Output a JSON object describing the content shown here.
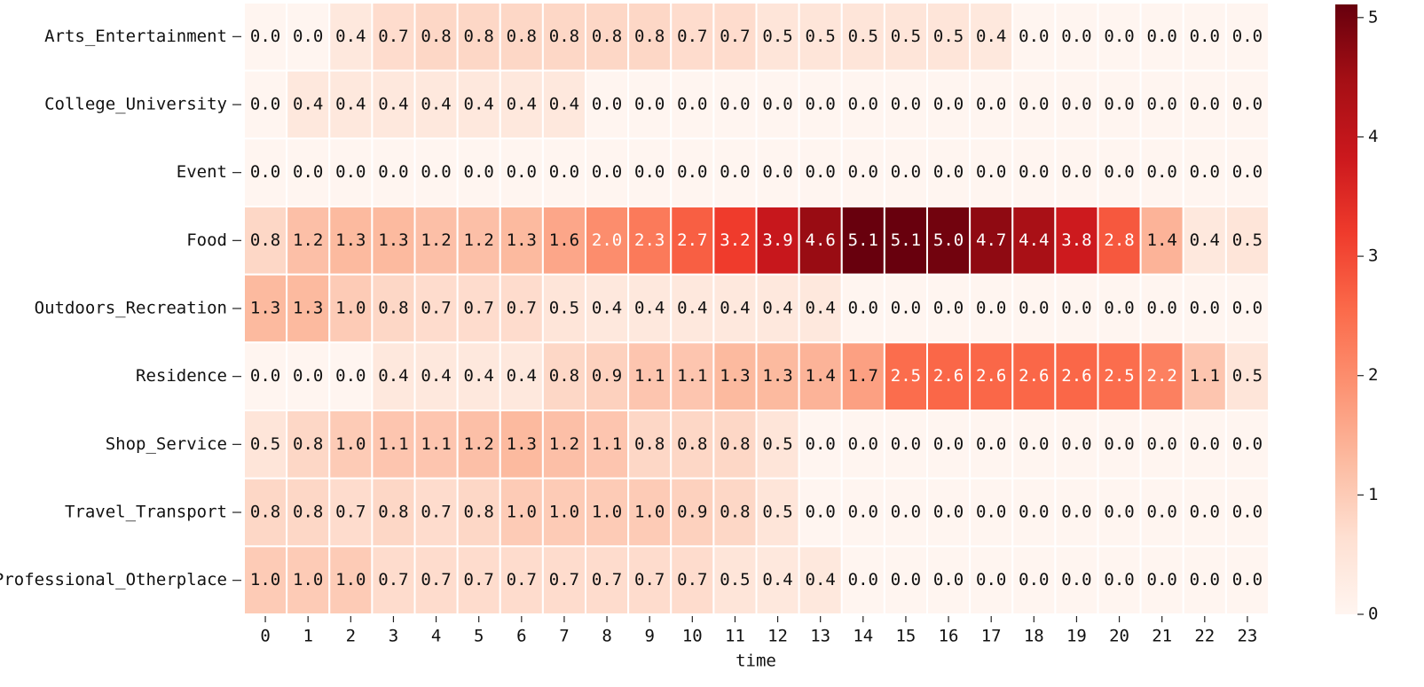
{
  "chart_data": {
    "type": "heatmap",
    "x_label": "time",
    "categories": [
      0,
      1,
      2,
      3,
      4,
      5,
      6,
      7,
      8,
      9,
      10,
      11,
      12,
      13,
      14,
      15,
      16,
      17,
      18,
      19,
      20,
      21,
      22,
      23
    ],
    "rows": [
      "Arts_Entertainment",
      "College_University",
      "Event",
      "Food",
      "Outdoors_Recreation",
      "Residence",
      "Shop_Service",
      "Travel_Transport",
      "Professional_Otherplace"
    ],
    "values": [
      [
        0,
        0,
        0.4,
        0.7,
        0.8,
        0.8,
        0.8,
        0.8,
        0.8,
        0.8,
        0.7,
        0.7,
        0.5,
        0.5,
        0.5,
        0.5,
        0.5,
        0.4,
        0,
        0,
        0,
        0,
        0,
        0
      ],
      [
        0,
        0.4,
        0.4,
        0.4,
        0.4,
        0.4,
        0.4,
        0.4,
        0,
        0,
        0,
        0,
        0,
        0,
        0,
        0,
        0,
        0,
        0,
        0,
        0,
        0,
        0,
        0
      ],
      [
        0,
        0,
        0,
        0,
        0,
        0,
        0,
        0,
        0,
        0,
        0,
        0,
        0,
        0,
        0,
        0,
        0,
        0,
        0,
        0,
        0,
        0,
        0,
        0
      ],
      [
        0.8,
        1.2,
        1.3,
        1.3,
        1.2,
        1.2,
        1.3,
        1.6,
        2,
        2.3,
        2.7,
        3.2,
        3.9,
        4.6,
        5.1,
        5.1,
        5,
        4.7,
        4.4,
        3.8,
        2.8,
        1.4,
        0.4,
        0.5
      ],
      [
        1.3,
        1.3,
        1,
        0.8,
        0.7,
        0.7,
        0.7,
        0.5,
        0.4,
        0.4,
        0.4,
        0.4,
        0.4,
        0.4,
        0,
        0,
        0,
        0,
        0,
        0,
        0,
        0,
        0,
        0
      ],
      [
        0,
        0,
        0,
        0.4,
        0.4,
        0.4,
        0.4,
        0.8,
        0.9,
        1.1,
        1.1,
        1.3,
        1.3,
        1.4,
        1.7,
        2.5,
        2.6,
        2.6,
        2.6,
        2.6,
        2.5,
        2.2,
        1.1,
        0.5
      ],
      [
        0.5,
        0.8,
        1,
        1.1,
        1.1,
        1.2,
        1.3,
        1.2,
        1.1,
        0.8,
        0.8,
        0.8,
        0.5,
        0,
        0,
        0,
        0,
        0,
        0,
        0,
        0,
        0,
        0,
        0
      ],
      [
        0.8,
        0.8,
        0.7,
        0.8,
        0.7,
        0.8,
        1,
        1,
        1,
        1,
        0.9,
        0.8,
        0.5,
        0,
        0,
        0,
        0,
        0,
        0,
        0,
        0,
        0,
        0,
        0
      ],
      [
        1,
        1,
        1,
        0.7,
        0.7,
        0.7,
        0.7,
        0.7,
        0.7,
        0.7,
        0.7,
        0.5,
        0.4,
        0.4,
        0,
        0,
        0,
        0,
        0,
        0,
        0,
        0,
        0,
        0
      ]
    ],
    "value_labels": [
      [
        "0.0",
        "0.0",
        "0.4",
        "0.7",
        "0.8",
        "0.8",
        "0.8",
        "0.8",
        "0.8",
        "0.8",
        "0.7",
        "0.7",
        "0.5",
        "0.5",
        "0.5",
        "0.5",
        "0.5",
        "0.4",
        "0.0",
        "0.0",
        "0.0",
        "0.0",
        "0.0",
        "0.0"
      ],
      [
        "0.0",
        "0.4",
        "0.4",
        "0.4",
        "0.4",
        "0.4",
        "0.4",
        "0.4",
        "0.0",
        "0.0",
        "0.0",
        "0.0",
        "0.0",
        "0.0",
        "0.0",
        "0.0",
        "0.0",
        "0.0",
        "0.0",
        "0.0",
        "0.0",
        "0.0",
        "0.0",
        "0.0"
      ],
      [
        "0.0",
        "0.0",
        "0.0",
        "0.0",
        "0.0",
        "0.0",
        "0.0",
        "0.0",
        "0.0",
        "0.0",
        "0.0",
        "0.0",
        "0.0",
        "0.0",
        "0.0",
        "0.0",
        "0.0",
        "0.0",
        "0.0",
        "0.0",
        "0.0",
        "0.0",
        "0.0",
        "0.0"
      ],
      [
        "0.8",
        "1.2",
        "1.3",
        "1.3",
        "1.2",
        "1.2",
        "1.3",
        "1.6",
        "2.0",
        "2.3",
        "2.7",
        "3.2",
        "3.9",
        "4.6",
        "5.1",
        "5.1",
        "5.0",
        "4.7",
        "4.4",
        "3.8",
        "2.8",
        "1.4",
        "0.4",
        "0.5"
      ],
      [
        "1.3",
        "1.3",
        "1.0",
        "0.8",
        "0.7",
        "0.7",
        "0.7",
        "0.5",
        "0.4",
        "0.4",
        "0.4",
        "0.4",
        "0.4",
        "0.4",
        "0.0",
        "0.0",
        "0.0",
        "0.0",
        "0.0",
        "0.0",
        "0.0",
        "0.0",
        "0.0",
        "0.0"
      ],
      [
        "0.0",
        "0.0",
        "0.0",
        "0.4",
        "0.4",
        "0.4",
        "0.4",
        "0.8",
        "0.9",
        "1.1",
        "1.1",
        "1.3",
        "1.3",
        "1.4",
        "1.7",
        "2.5",
        "2.6",
        "2.6",
        "2.6",
        "2.6",
        "2.5",
        "2.2",
        "1.1",
        "0.5"
      ],
      [
        "0.5",
        "0.8",
        "1.0",
        "1.1",
        "1.1",
        "1.2",
        "1.3",
        "1.2",
        "1.1",
        "0.8",
        "0.8",
        "0.8",
        "0.5",
        "0.0",
        "0.0",
        "0.0",
        "0.0",
        "0.0",
        "0.0",
        "0.0",
        "0.0",
        "0.0",
        "0.0",
        "0.0"
      ],
      [
        "0.8",
        "0.8",
        "0.7",
        "0.8",
        "0.7",
        "0.8",
        "1.0",
        "1.0",
        "1.0",
        "1.0",
        "0.9",
        "0.8",
        "0.5",
        "0.0",
        "0.0",
        "0.0",
        "0.0",
        "0.0",
        "0.0",
        "0.0",
        "0.0",
        "0.0",
        "0.0",
        "0.0"
      ],
      [
        "1.0",
        "1.0",
        "1.0",
        "0.7",
        "0.7",
        "0.7",
        "0.7",
        "0.7",
        "0.7",
        "0.7",
        "0.7",
        "0.5",
        "0.4",
        "0.4",
        "0.0",
        "0.0",
        "0.0",
        "0.0",
        "0.0",
        "0.0",
        "0.0",
        "0.0",
        "0.0",
        "0.0"
      ]
    ],
    "colormap": "Reds",
    "zlim": [
      0,
      5.11
    ],
    "colorbar_ticks": [
      0,
      1,
      2,
      3,
      4,
      5
    ]
  }
}
